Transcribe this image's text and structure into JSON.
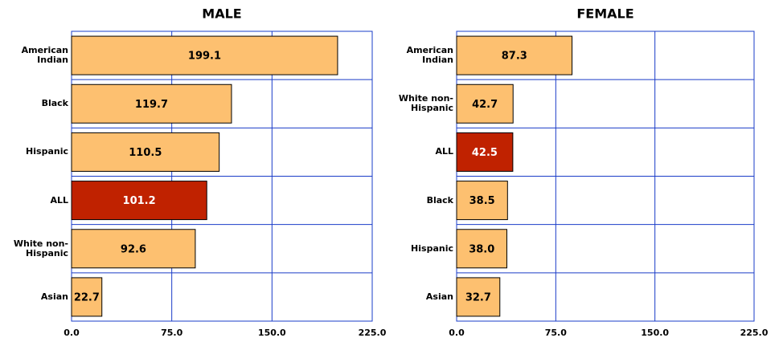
{
  "chart_data": [
    {
      "type": "bar",
      "orientation": "horizontal",
      "title": "MALE",
      "categories": [
        "American Indian",
        "Black",
        "Hispanic",
        "ALL",
        "White non-Hispanic",
        "Asian"
      ],
      "values": [
        199.1,
        119.7,
        110.5,
        101.2,
        92.6,
        22.7
      ],
      "value_labels": [
        "199.1",
        "119.7",
        "110.5",
        "101.2",
        "92.6",
        "22.7"
      ],
      "colors": [
        "#fdc070",
        "#fdc070",
        "#fdc070",
        "#c02200",
        "#fdc070",
        "#fdc070"
      ],
      "xlim": [
        0,
        225
      ],
      "xticks": [
        {
          "value": 0,
          "label": "0.0"
        },
        {
          "value": 75,
          "label": "75.0"
        },
        {
          "value": 150,
          "label": "150.0"
        },
        {
          "value": 225,
          "label": "225.0"
        }
      ],
      "grid": true,
      "grid_color": "#1a3cc8"
    },
    {
      "type": "bar",
      "orientation": "horizontal",
      "title": "FEMALE",
      "categories": [
        "American Indian",
        "White non-Hispanic",
        "ALL",
        "Black",
        "Hispanic",
        "Asian"
      ],
      "values": [
        87.3,
        42.7,
        42.5,
        38.5,
        38,
        32.7
      ],
      "value_labels": [
        "87.3",
        "42.7",
        "42.5",
        "38.5",
        "38.0",
        "32.7"
      ],
      "colors": [
        "#fdc070",
        "#fdc070",
        "#c02200",
        "#fdc070",
        "#fdc070",
        "#fdc070"
      ],
      "xlim": [
        0,
        225
      ],
      "xticks": [
        {
          "value": 0,
          "label": "0.0"
        },
        {
          "value": 75,
          "label": "75.0"
        },
        {
          "value": 150,
          "label": "150.0"
        },
        {
          "value": 225,
          "label": "225.0"
        }
      ],
      "grid": true,
      "grid_color": "#1a3cc8"
    }
  ]
}
